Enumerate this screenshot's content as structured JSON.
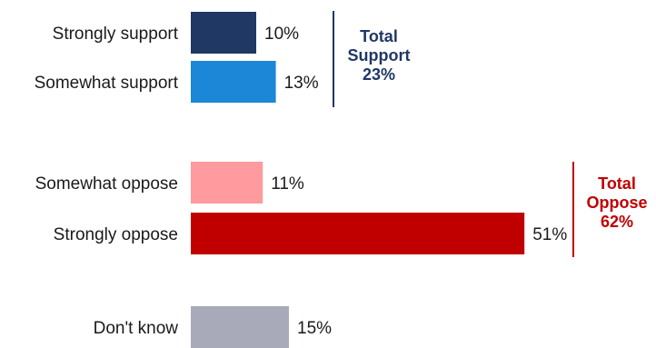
{
  "chart_data": {
    "type": "bar",
    "orientation": "horizontal",
    "categories": [
      "Strongly support",
      "Somewhat support",
      "Somewhat oppose",
      "Strongly oppose",
      "Don't know"
    ],
    "values": [
      10,
      13,
      11,
      51,
      15
    ],
    "value_labels": [
      "10%",
      "13%",
      "11%",
      "51%",
      "15%"
    ],
    "colors": [
      "#1f3864",
      "#1c87d6",
      "#ff9a9e",
      "#c00000",
      "#a9aab9"
    ],
    "brackets": [
      {
        "lines": [
          "Total",
          "Support",
          "23%"
        ],
        "color": "#1f3864"
      },
      {
        "lines": [
          "Total",
          "Oppose",
          "62%"
        ],
        "color": "#c00000"
      }
    ],
    "title": "",
    "xlabel": "",
    "ylabel": ""
  }
}
